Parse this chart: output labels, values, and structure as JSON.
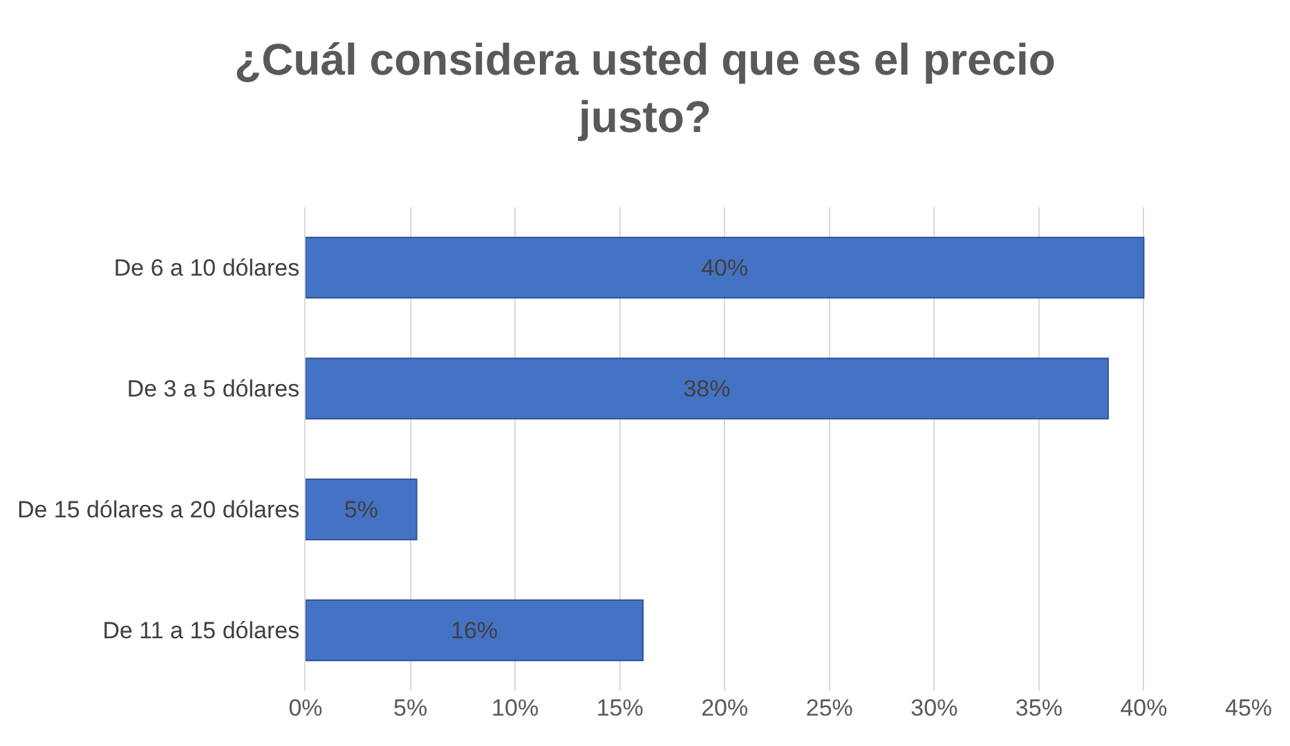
{
  "chart_data": {
    "type": "bar",
    "orientation": "horizontal",
    "title": "¿Cuál considera usted que es el precio justo?",
    "categories": [
      "De 6 a 10 dólares",
      "De 3 a 5 dólares",
      "De 15 dólares a 20 dólares",
      "De 11 a 15 dólares"
    ],
    "values": [
      40,
      38.3,
      5.3,
      16.1
    ],
    "value_labels": [
      "40%",
      "38%",
      "5%",
      "16%"
    ],
    "color": "#4472c4",
    "xlim": [
      0,
      45
    ],
    "xticks": [
      {
        "value": 0,
        "label": "0%"
      },
      {
        "value": 5,
        "label": "5%"
      },
      {
        "value": 10,
        "label": "10%"
      },
      {
        "value": 15,
        "label": "15%"
      },
      {
        "value": 20,
        "label": "20%"
      },
      {
        "value": 25,
        "label": "25%"
      },
      {
        "value": 30,
        "label": "30%"
      },
      {
        "value": 35,
        "label": "35%"
      },
      {
        "value": 40,
        "label": "40%"
      },
      {
        "value": 45,
        "label": "45%"
      }
    ],
    "grid": "x"
  }
}
